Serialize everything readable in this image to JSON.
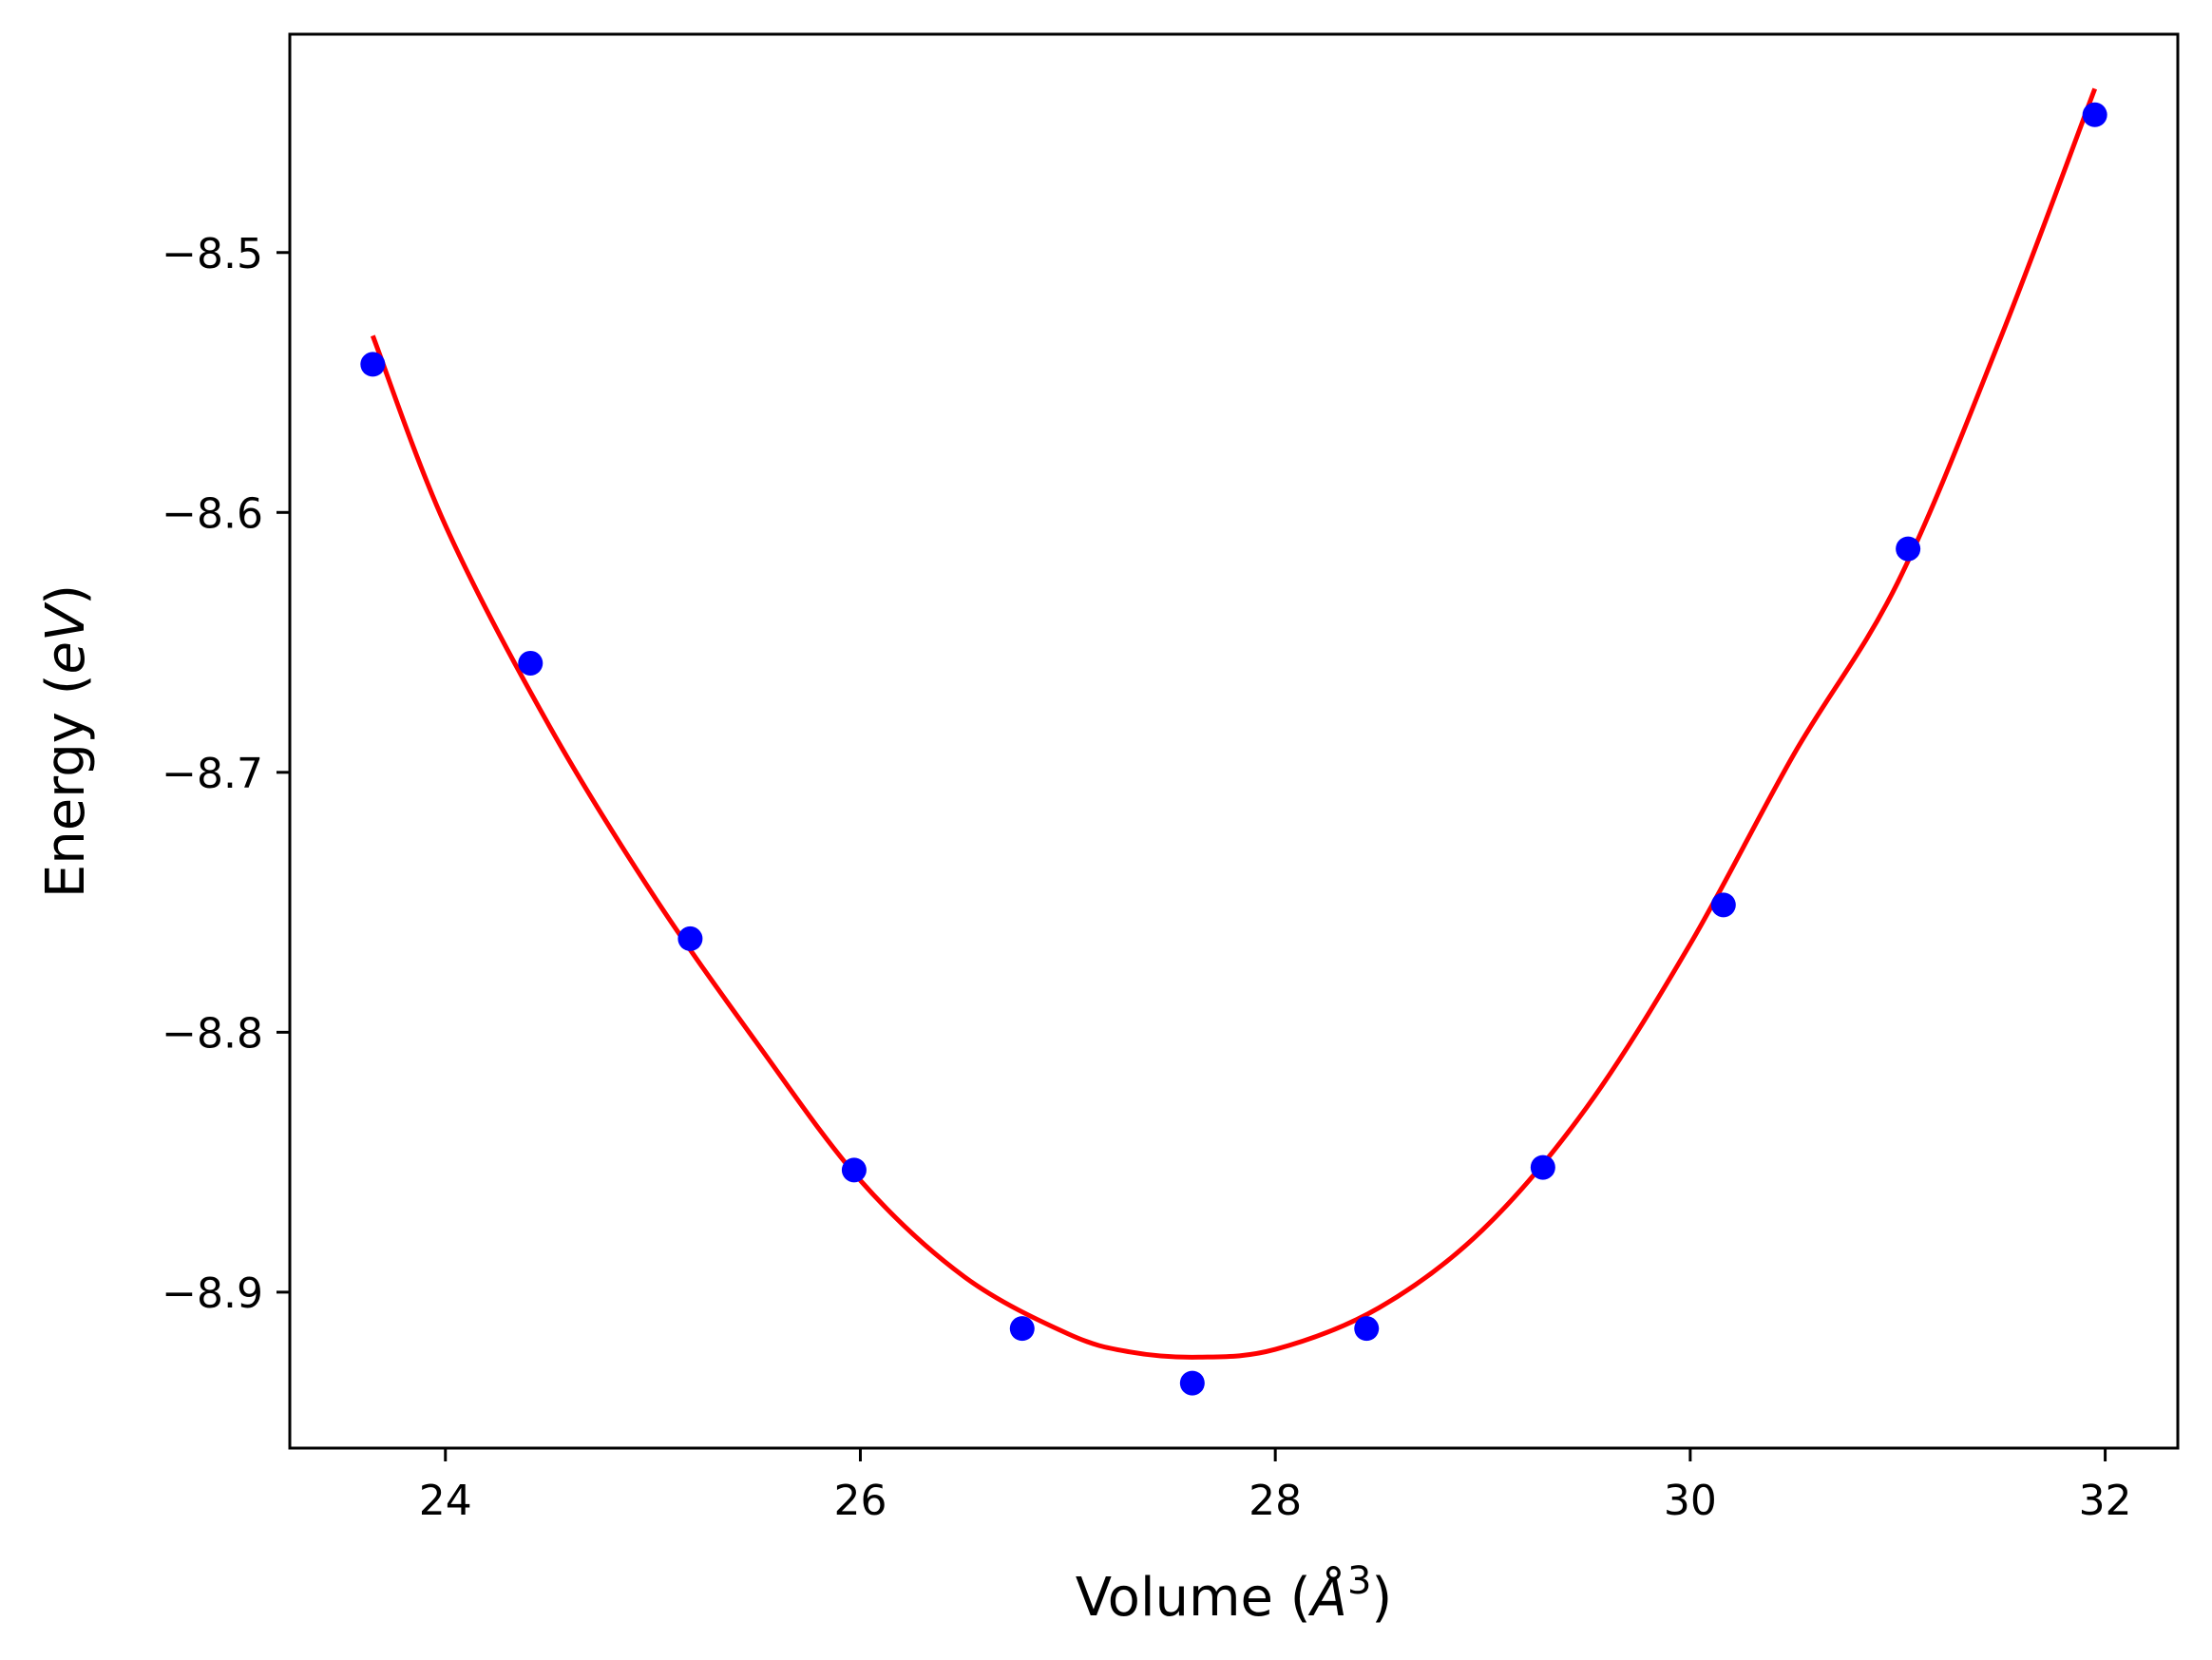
{
  "chart_data": {
    "type": "scatter",
    "title": "",
    "xlabel": "Volume (Å³)",
    "xlabel_parts": {
      "pre": "Volume (",
      "italic": "Å",
      "sup": "3",
      "post": ")"
    },
    "ylabel": "Energy (eV)",
    "ylabel_parts": {
      "pre": "Energy (",
      "italic": "eV",
      "post": ")"
    },
    "xlim": [
      23.25,
      32.35
    ],
    "ylim": [
      -8.96,
      -8.416
    ],
    "xticks": [
      24,
      26,
      28,
      30,
      32
    ],
    "xtick_labels": [
      "24",
      "26",
      "28",
      "30",
      "32"
    ],
    "yticks": [
      -8.9,
      -8.8,
      -8.7,
      -8.6,
      -8.5
    ],
    "ytick_labels": [
      "−8.9",
      "−8.8",
      "−8.7",
      "−8.6",
      "−8.5"
    ],
    "grid": false,
    "series": [
      {
        "kind": "scatter",
        "color": "#0000ff",
        "x": [
          23.65,
          24.41,
          25.18,
          25.97,
          26.78,
          27.6,
          28.44,
          29.29,
          30.16,
          31.05,
          31.95
        ],
        "y": [
          -8.543,
          -8.658,
          -8.764,
          -8.853,
          -8.914,
          -8.935,
          -8.914,
          -8.852,
          -8.751,
          -8.614,
          -8.447
        ]
      },
      {
        "kind": "line",
        "color": "#ff0000",
        "x": [
          23.65,
          24.0,
          24.5,
          25.0,
          25.5,
          26.0,
          26.5,
          27.0,
          27.3,
          27.63,
          28.0,
          28.5,
          29.0,
          29.5,
          30.0,
          30.5,
          31.0,
          31.5,
          31.95
        ],
        "y": [
          -8.532,
          -8.605,
          -8.682,
          -8.747,
          -8.804,
          -8.857,
          -8.894,
          -8.916,
          -8.923,
          -8.925,
          -8.922,
          -8.906,
          -8.876,
          -8.829,
          -8.766,
          -8.693,
          -8.627,
          -8.532,
          -8.437
        ]
      }
    ]
  }
}
